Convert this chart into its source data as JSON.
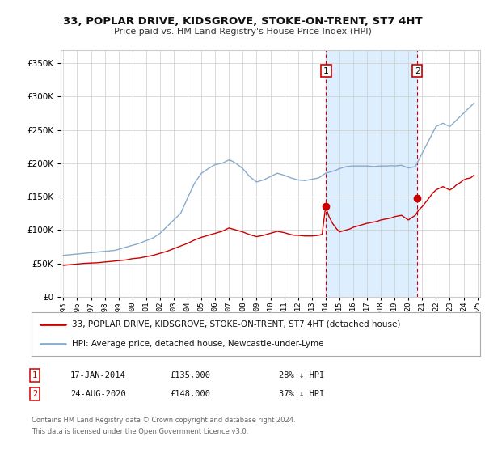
{
  "title": "33, POPLAR DRIVE, KIDSGROVE, STOKE-ON-TRENT, ST7 4HT",
  "subtitle": "Price paid vs. HM Land Registry's House Price Index (HPI)",
  "legend_line1": "33, POPLAR DRIVE, KIDSGROVE, STOKE-ON-TRENT, ST7 4HT (detached house)",
  "legend_line2": "HPI: Average price, detached house, Newcastle-under-Lyme",
  "annotation1_label": "1",
  "annotation1_date": "17-JAN-2014",
  "annotation1_price": "£135,000",
  "annotation1_hpi": "28% ↓ HPI",
  "annotation2_label": "2",
  "annotation2_date": "24-AUG-2020",
  "annotation2_price": "£148,000",
  "annotation2_hpi": "37% ↓ HPI",
  "footer_line1": "Contains HM Land Registry data © Crown copyright and database right 2024.",
  "footer_line2": "This data is licensed under the Open Government Licence v3.0.",
  "red_color": "#cc0000",
  "blue_color": "#88aacc",
  "shade_color": "#ddeeff",
  "background_color": "#ffffff",
  "grid_color": "#cccccc",
  "ylim": [
    0,
    370000
  ],
  "yticks": [
    0,
    50000,
    100000,
    150000,
    200000,
    250000,
    300000,
    350000
  ],
  "year_start": 1995,
  "year_end": 2025,
  "sale1_year": 2014.04,
  "sale1_value": 135000,
  "sale2_year": 2020.65,
  "sale2_value": 148000,
  "hpi_years": [
    1995,
    1995.25,
    1995.5,
    1995.75,
    1996,
    1996.25,
    1996.5,
    1996.75,
    1997,
    1997.25,
    1997.5,
    1997.75,
    1998,
    1998.25,
    1998.5,
    1998.75,
    1999,
    1999.25,
    1999.5,
    1999.75,
    2000,
    2000.25,
    2000.5,
    2000.75,
    2001,
    2001.25,
    2001.5,
    2001.75,
    2002,
    2002.25,
    2002.5,
    2002.75,
    2003,
    2003.25,
    2003.5,
    2003.75,
    2004,
    2004.25,
    2004.5,
    2004.75,
    2005,
    2005.25,
    2005.5,
    2005.75,
    2006,
    2006.25,
    2006.5,
    2006.75,
    2007,
    2007.25,
    2007.5,
    2007.75,
    2008,
    2008.25,
    2008.5,
    2008.75,
    2009,
    2009.25,
    2009.5,
    2009.75,
    2010,
    2010.25,
    2010.5,
    2010.75,
    2011,
    2011.25,
    2011.5,
    2011.75,
    2012,
    2012.25,
    2012.5,
    2012.75,
    2013,
    2013.25,
    2013.5,
    2013.75,
    2014,
    2014.25,
    2014.5,
    2014.75,
    2015,
    2015.25,
    2015.5,
    2015.75,
    2016,
    2016.25,
    2016.5,
    2016.75,
    2017,
    2017.25,
    2017.5,
    2017.75,
    2018,
    2018.25,
    2018.5,
    2018.75,
    2019,
    2019.25,
    2019.5,
    2019.75,
    2020,
    2020.25,
    2020.5,
    2020.75,
    2021,
    2021.25,
    2021.5,
    2021.75,
    2022,
    2022.25,
    2022.5,
    2022.75,
    2023,
    2023.25,
    2023.5,
    2023.75,
    2024,
    2024.25,
    2024.5,
    2024.75
  ],
  "hpi_values": [
    62000,
    62500,
    63000,
    63500,
    64000,
    64500,
    65000,
    65500,
    66000,
    66500,
    67000,
    67500,
    68000,
    68500,
    69000,
    69500,
    71000,
    72500,
    74000,
    75500,
    77000,
    78500,
    80000,
    82000,
    84000,
    86000,
    88000,
    91500,
    95000,
    100000,
    105000,
    110000,
    115000,
    120000,
    125000,
    136500,
    148000,
    159000,
    170000,
    177500,
    185000,
    188500,
    192000,
    195000,
    198000,
    199000,
    200000,
    202500,
    205000,
    203000,
    200000,
    196000,
    192000,
    186000,
    180000,
    176000,
    172000,
    173500,
    175000,
    177500,
    180000,
    182500,
    185000,
    183500,
    182000,
    180000,
    178000,
    176500,
    175000,
    174500,
    174000,
    175000,
    176000,
    177000,
    178000,
    181500,
    185000,
    186500,
    188000,
    189500,
    192000,
    193500,
    195000,
    195500,
    196000,
    196000,
    196000,
    196000,
    196000,
    195500,
    195000,
    195500,
    196000,
    196000,
    196000,
    196500,
    196000,
    196500,
    197000,
    195000,
    193000,
    194000,
    195000,
    205000,
    215000,
    225000,
    235000,
    245000,
    255000,
    257500,
    260000,
    257500,
    255000,
    260000,
    265000,
    270000,
    275000,
    280000,
    285000,
    290000
  ],
  "red_years": [
    1995,
    1995.25,
    1995.5,
    1995.75,
    1996,
    1996.25,
    1996.5,
    1996.75,
    1997,
    1997.25,
    1997.5,
    1997.75,
    1998,
    1998.25,
    1998.5,
    1998.75,
    1999,
    1999.25,
    1999.5,
    1999.75,
    2000,
    2000.25,
    2000.5,
    2000.75,
    2001,
    2001.25,
    2001.5,
    2001.75,
    2002,
    2002.25,
    2002.5,
    2002.75,
    2003,
    2003.25,
    2003.5,
    2003.75,
    2004,
    2004.25,
    2004.5,
    2004.75,
    2005,
    2005.25,
    2005.5,
    2005.75,
    2006,
    2006.25,
    2006.5,
    2006.75,
    2007,
    2007.25,
    2007.5,
    2007.75,
    2008,
    2008.25,
    2008.5,
    2008.75,
    2009,
    2009.25,
    2009.5,
    2009.75,
    2010,
    2010.25,
    2010.5,
    2010.75,
    2011,
    2011.25,
    2011.5,
    2011.75,
    2012,
    2012.25,
    2012.5,
    2012.75,
    2013,
    2013.25,
    2013.5,
    2013.75,
    2014,
    2014.25,
    2014.5,
    2014.75,
    2015,
    2015.25,
    2015.5,
    2015.75,
    2016,
    2016.25,
    2016.5,
    2016.75,
    2017,
    2017.25,
    2017.5,
    2017.75,
    2018,
    2018.25,
    2018.5,
    2018.75,
    2019,
    2019.25,
    2019.5,
    2019.75,
    2020,
    2020.25,
    2020.5,
    2020.75,
    2021,
    2021.25,
    2021.5,
    2021.75,
    2022,
    2022.25,
    2022.5,
    2022.75,
    2023,
    2023.25,
    2023.5,
    2023.75,
    2024,
    2024.25,
    2024.5,
    2024.75
  ],
  "red_values": [
    47000,
    47500,
    48000,
    48500,
    49000,
    49500,
    50000,
    50200,
    50500,
    50700,
    51000,
    51500,
    52000,
    52500,
    53000,
    53500,
    54000,
    54500,
    55000,
    56000,
    57000,
    57500,
    58000,
    59000,
    60000,
    61000,
    62000,
    63500,
    65000,
    66500,
    68000,
    70000,
    72000,
    74000,
    76000,
    78000,
    80000,
    82500,
    85000,
    87000,
    89000,
    90500,
    92000,
    93500,
    95000,
    96500,
    98000,
    100500,
    103000,
    101500,
    100000,
    98500,
    97000,
    95000,
    93000,
    91500,
    90000,
    91000,
    92000,
    93500,
    95000,
    96500,
    98000,
    97000,
    96000,
    94500,
    93000,
    92000,
    92000,
    91500,
    91000,
    91000,
    91000,
    91500,
    92000,
    93500,
    135000,
    120000,
    110000,
    103000,
    97000,
    98500,
    100000,
    101500,
    104000,
    105500,
    107000,
    108500,
    110000,
    111000,
    112000,
    113000,
    115000,
    116000,
    117000,
    118000,
    120000,
    121000,
    122000,
    118500,
    115000,
    118500,
    122000,
    130000,
    135000,
    141500,
    148000,
    155000,
    160000,
    162500,
    165000,
    162500,
    160000,
    163000,
    168000,
    171000,
    175000,
    177000,
    178000,
    182000
  ]
}
